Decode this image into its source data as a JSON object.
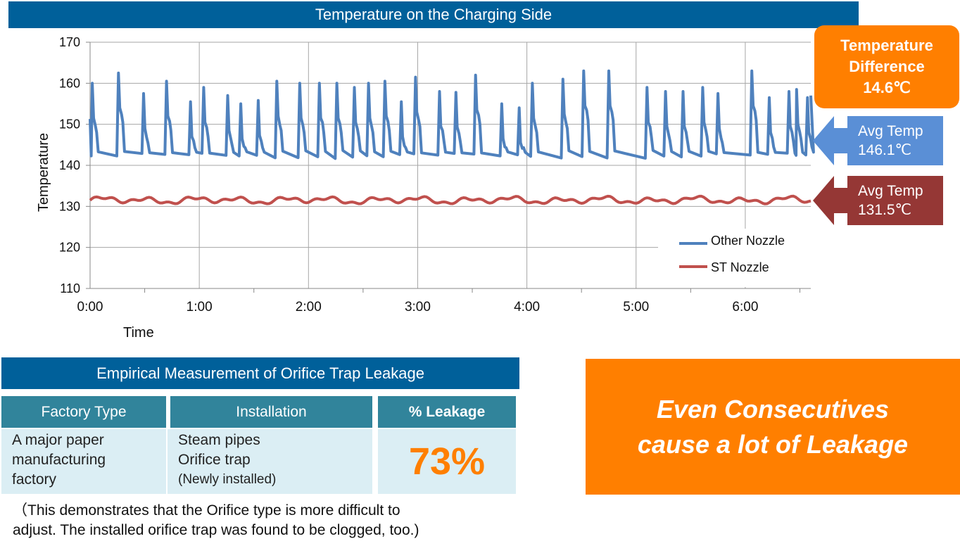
{
  "chart_banner": "Temperature on the Charging Side",
  "chart_data": {
    "type": "line",
    "xlabel": "Time",
    "ylabel": "Temperature",
    "ylim": [
      110,
      170
    ],
    "yticks": [
      "110",
      "120",
      "130",
      "140",
      "150",
      "160",
      "170"
    ],
    "xticks": [
      "0:00",
      "1:00",
      "2:00",
      "3:00",
      "4:00",
      "5:00",
      "6:00"
    ],
    "xlim_hours": [
      0,
      6.6
    ],
    "grid": true,
    "legend_position": "bottom-right",
    "series": [
      {
        "name": "Other Nozzle",
        "color": "#4f81bd",
        "base": 142.3,
        "peak_hours": [
          0.02,
          0.26,
          0.49,
          0.7,
          0.92,
          1.04,
          1.26,
          1.38,
          1.54,
          1.71,
          1.92,
          2.1,
          2.26,
          2.42,
          2.55,
          2.7,
          2.85,
          2.98,
          3.2,
          3.35,
          3.53,
          3.77,
          3.93,
          4.05,
          4.33,
          4.52,
          4.75,
          5.1,
          5.27,
          5.43,
          5.61,
          5.75,
          6.06,
          6.22,
          6.4,
          6.47,
          6.57
        ],
        "peak_values": [
          160,
          162.5,
          157.5,
          160.5,
          155.5,
          159,
          157,
          155,
          155.8,
          160.5,
          160,
          160,
          160,
          159,
          160,
          160.5,
          155.5,
          161.5,
          158,
          157.8,
          162,
          155,
          154,
          160,
          161,
          163,
          163,
          159,
          158,
          158,
          159,
          157.5,
          163,
          156.5,
          158,
          158.5,
          156.5
        ]
      },
      {
        "name": "ST Nozzle",
        "color": "#c0504d",
        "base": 131.5,
        "values_range": [
          130.5,
          133
        ]
      }
    ]
  },
  "annotations": {
    "diff_box": [
      "Temperature",
      "Difference",
      "14.6℃"
    ],
    "avg_blue": [
      "Avg Temp",
      "146.1℃"
    ],
    "avg_red": [
      "Avg Temp",
      "131.5℃"
    ]
  },
  "table": {
    "title": "Empirical Measurement of Orifice Trap Leakage",
    "headers": [
      "Factory Type",
      "Installation",
      "% Leakage"
    ],
    "factory_lines": [
      "A major paper",
      "manufacturing",
      "factory"
    ],
    "installation_lines": [
      "Steam pipes",
      "Orifice trap",
      "(Newly installed)"
    ],
    "leakage": "73%"
  },
  "footnote": [
    "（This demonstrates that the Orifice type is more difficult to",
    "adjust. The installed orifice trap was found to be clogged, too.)"
  ],
  "callout": [
    "Even Consecutives",
    "cause a lot of Leakage"
  ]
}
